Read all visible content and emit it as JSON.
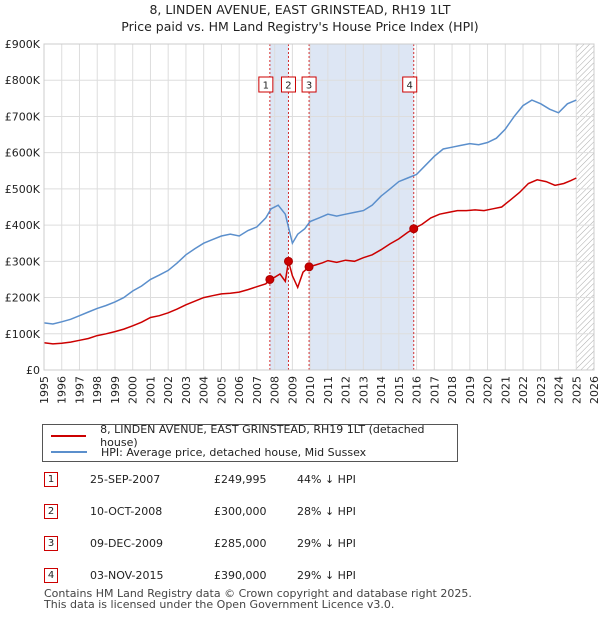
{
  "title_line1": "8, LINDEN AVENUE, EAST GRINSTEAD, RH19 1LT",
  "title_line2": "Price paid vs. HM Land Registry's House Price Index (HPI)",
  "chart_data": {
    "type": "line",
    "title": "Price paid vs. HM Land Registry's House Price Index (HPI)",
    "xlabel": "",
    "ylabel": "",
    "xlim": [
      1995,
      2026
    ],
    "ylim": [
      0,
      900000
    ],
    "x_ticks": [
      "1995",
      "1996",
      "1997",
      "1998",
      "1999",
      "2000",
      "2001",
      "2002",
      "2003",
      "2004",
      "2005",
      "2006",
      "2007",
      "2008",
      "2009",
      "2010",
      "2011",
      "2012",
      "2013",
      "2014",
      "2015",
      "2016",
      "2017",
      "2018",
      "2019",
      "2020",
      "2021",
      "2022",
      "2023",
      "2024",
      "2025",
      "2026"
    ],
    "y_ticks": [
      {
        "value": 0,
        "label": "£0"
      },
      {
        "value": 100000,
        "label": "£100K"
      },
      {
        "value": 200000,
        "label": "£200K"
      },
      {
        "value": 300000,
        "label": "£300K"
      },
      {
        "value": 400000,
        "label": "£400K"
      },
      {
        "value": 500000,
        "label": "£500K"
      },
      {
        "value": 600000,
        "label": "£600K"
      },
      {
        "value": 700000,
        "label": "£700K"
      },
      {
        "value": 800000,
        "label": "£800K"
      },
      {
        "value": 900000,
        "label": "£900K"
      }
    ],
    "grid": true,
    "legend_position": "below",
    "series": [
      {
        "name": "8, LINDEN AVENUE, EAST GRINSTEAD, RH19 1LT (detached house)",
        "color": "#cc0000",
        "x": [
          1995.0,
          1995.5,
          1996.0,
          1996.5,
          1997.0,
          1997.5,
          1998.0,
          1998.5,
          1999.0,
          1999.5,
          2000.0,
          2000.5,
          2001.0,
          2001.5,
          2002.0,
          2002.5,
          2003.0,
          2003.5,
          2004.0,
          2004.5,
          2005.0,
          2005.5,
          2006.0,
          2006.5,
          2007.0,
          2007.5,
          2007.73,
          2008.0,
          2008.3,
          2008.6,
          2008.78,
          2009.0,
          2009.3,
          2009.6,
          2009.94,
          2010.3,
          2010.7,
          2011.0,
          2011.5,
          2012.0,
          2012.5,
          2013.0,
          2013.5,
          2014.0,
          2014.5,
          2015.0,
          2015.5,
          2015.84,
          2016.3,
          2016.8,
          2017.3,
          2017.8,
          2018.3,
          2018.8,
          2019.3,
          2019.8,
          2020.3,
          2020.8,
          2021.3,
          2021.8,
          2022.3,
          2022.8,
          2023.3,
          2023.8,
          2024.3,
          2024.7,
          2025.0
        ],
        "values": [
          75000,
          72000,
          74000,
          77000,
          82000,
          87000,
          95000,
          100000,
          106000,
          113000,
          122000,
          132000,
          145000,
          150000,
          158000,
          168000,
          180000,
          190000,
          200000,
          205000,
          210000,
          212000,
          215000,
          222000,
          230000,
          238000,
          249995,
          256000,
          265000,
          245000,
          300000,
          260000,
          228000,
          270000,
          285000,
          290000,
          296000,
          302000,
          297000,
          303000,
          300000,
          310000,
          318000,
          332000,
          348000,
          362000,
          380000,
          390000,
          402000,
          420000,
          430000,
          435000,
          440000,
          440000,
          442000,
          440000,
          445000,
          450000,
          470000,
          490000,
          515000,
          525000,
          520000,
          510000,
          515000,
          523000,
          530000
        ]
      },
      {
        "name": "HPI: Average price, detached house, Mid Sussex",
        "color": "#5b8fcc",
        "x": [
          1995.0,
          1995.5,
          1996.0,
          1996.5,
          1997.0,
          1997.5,
          1998.0,
          1998.5,
          1999.0,
          1999.5,
          2000.0,
          2000.5,
          2001.0,
          2001.5,
          2002.0,
          2002.5,
          2003.0,
          2003.5,
          2004.0,
          2004.5,
          2005.0,
          2005.5,
          2006.0,
          2006.5,
          2007.0,
          2007.5,
          2007.8,
          2008.2,
          2008.6,
          2009.0,
          2009.3,
          2009.7,
          2010.0,
          2010.5,
          2011.0,
          2011.5,
          2012.0,
          2012.5,
          2013.0,
          2013.5,
          2014.0,
          2014.5,
          2015.0,
          2015.5,
          2016.0,
          2016.5,
          2017.0,
          2017.5,
          2018.0,
          2018.5,
          2019.0,
          2019.5,
          2020.0,
          2020.5,
          2021.0,
          2021.5,
          2022.0,
          2022.5,
          2023.0,
          2023.5,
          2024.0,
          2024.5,
          2025.0
        ],
        "values": [
          130000,
          127000,
          133000,
          140000,
          150000,
          160000,
          170000,
          178000,
          188000,
          200000,
          218000,
          232000,
          250000,
          262000,
          275000,
          295000,
          318000,
          335000,
          350000,
          360000,
          370000,
          375000,
          370000,
          385000,
          395000,
          420000,
          445000,
          455000,
          430000,
          350000,
          375000,
          390000,
          410000,
          420000,
          430000,
          425000,
          430000,
          435000,
          440000,
          455000,
          480000,
          500000,
          520000,
          530000,
          540000,
          565000,
          590000,
          610000,
          615000,
          620000,
          625000,
          622000,
          628000,
          640000,
          665000,
          700000,
          730000,
          745000,
          735000,
          720000,
          710000,
          735000,
          745000
        ]
      }
    ],
    "transactions": [
      {
        "label": "1",
        "date": "25-SEP-2007",
        "x": 2007.73,
        "price": "£249,995",
        "value": 249995,
        "hpi": "44% ↓ HPI"
      },
      {
        "label": "2",
        "date": "10-OCT-2008",
        "x": 2008.78,
        "price": "£300,000",
        "value": 300000,
        "hpi": "28% ↓ HPI"
      },
      {
        "label": "3",
        "date": "09-DEC-2009",
        "x": 2009.94,
        "price": "£285,000",
        "value": 285000,
        "hpi": "29% ↓ HPI"
      },
      {
        "label": "4",
        "date": "03-NOV-2015",
        "x": 2015.84,
        "price": "£390,000",
        "value": 390000,
        "hpi": "29% ↓ HPI"
      }
    ]
  },
  "legend": {
    "series1_label": "8, LINDEN AVENUE, EAST GRINSTEAD, RH19 1LT (detached house)",
    "series2_label": "HPI: Average price, detached house, Mid Sussex"
  },
  "footer": {
    "line1": "Contains HM Land Registry data © Crown copyright and database right 2025.",
    "line2": "This data is licensed under the Open Government Licence v3.0."
  },
  "colors": {
    "property": "#cc0000",
    "hpi": "#5b8fcc",
    "grid": "#dddddd",
    "shade": "#dde6f4",
    "vline": "#cc0000"
  }
}
